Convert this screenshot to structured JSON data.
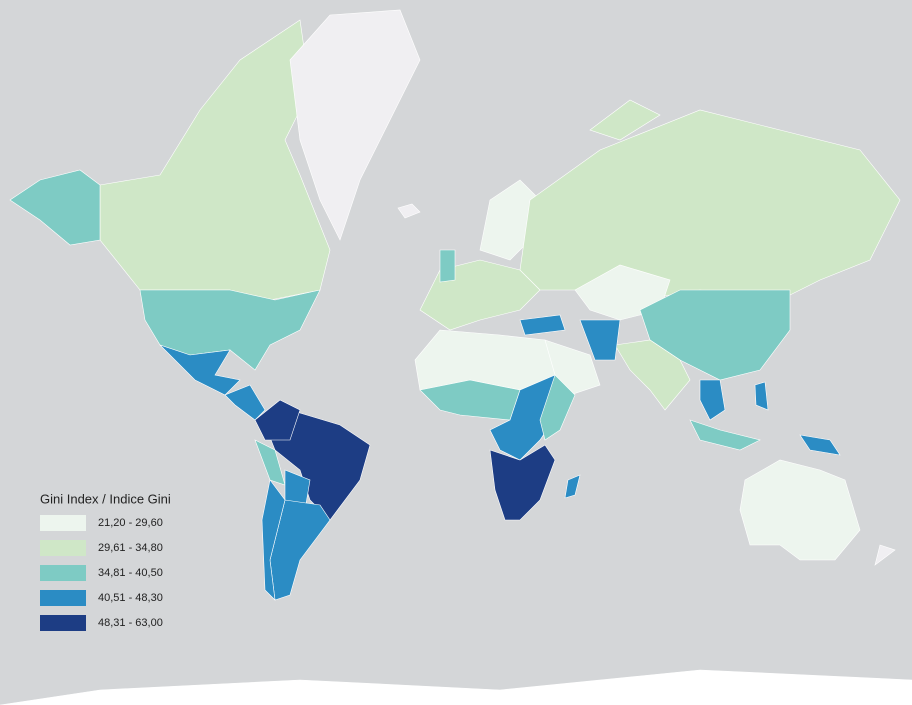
{
  "legend": {
    "title": "Gini Index / Indice Gini",
    "classes": [
      {
        "label": "21,20 - 29,60",
        "color": "#edf5ee"
      },
      {
        "label": "29,61 - 34,80",
        "color": "#cfe7c7"
      },
      {
        "label": "34,81 - 40,50",
        "color": "#7ecbc4"
      },
      {
        "label": "40,51 - 48,30",
        "color": "#2b8cc4"
      },
      {
        "label": "48,31 - 63,00",
        "color": "#1d3d84"
      }
    ]
  }
}
